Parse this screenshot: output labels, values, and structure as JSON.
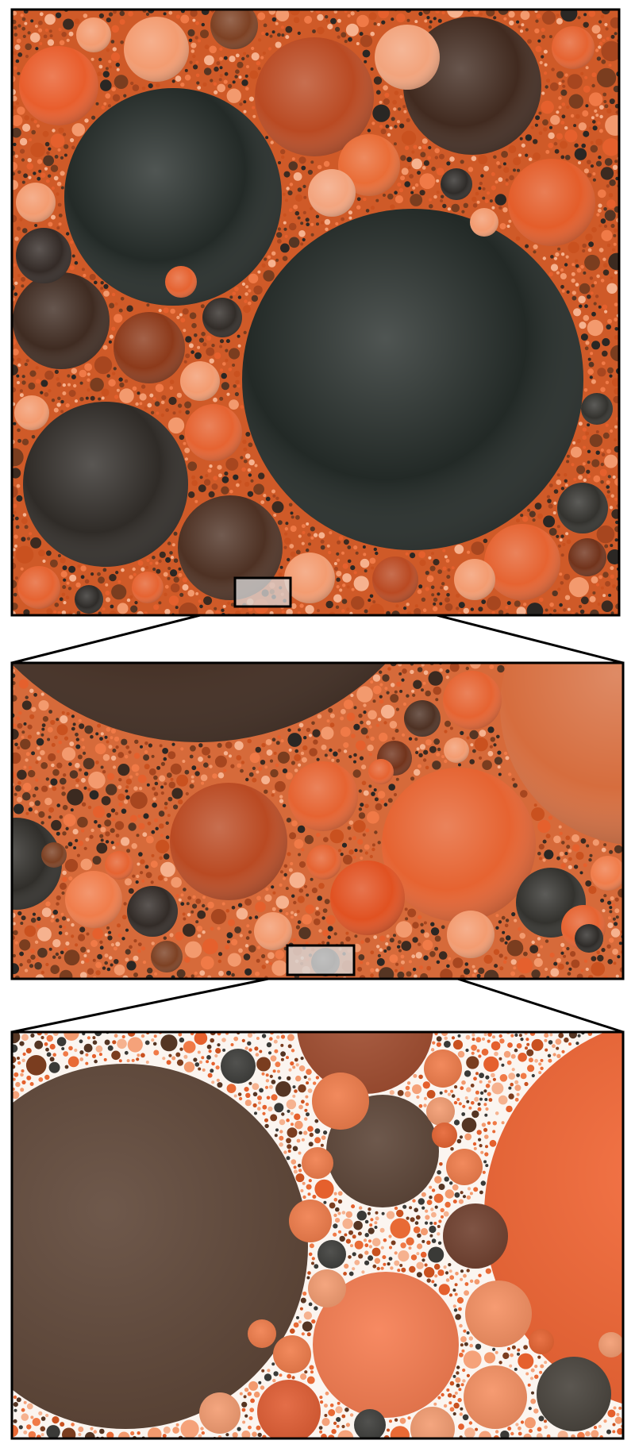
{
  "figure": {
    "panel_count": 3,
    "zoom_levels": [
      "overview",
      "zoom-1",
      "zoom-2"
    ],
    "colors": {
      "frame": "#000000",
      "background": "#ffffff",
      "packing_background": "#d35f2b",
      "deep_background": "#fbf5f0",
      "selection_fill": "#d9d9d9",
      "palette": [
        "#1c2320",
        "#2a2724",
        "#3b2a20",
        "#553523",
        "#7a3d1f",
        "#a7461f",
        "#c9511f",
        "#e5602d",
        "#f07a47",
        "#f39a6e",
        "#f6b28f",
        "#3a3a37"
      ]
    }
  }
}
